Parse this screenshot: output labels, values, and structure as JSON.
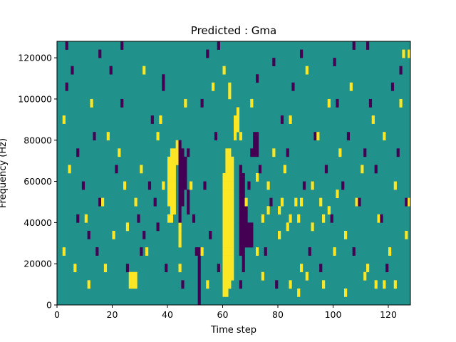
{
  "chart_data": {
    "type": "heatmap",
    "title": "Predicted : Gma",
    "xlabel": "Time step",
    "ylabel": "Frequency (Hz)",
    "xlim": [
      0,
      128
    ],
    "ylim": [
      0,
      128000
    ],
    "xticks": [
      0,
      20,
      40,
      60,
      80,
      100,
      120
    ],
    "yticks": [
      0,
      20000,
      40000,
      60000,
      80000,
      100000,
      120000
    ],
    "xtick_labels": [
      "0",
      "20",
      "40",
      "60",
      "80",
      "100",
      "120"
    ],
    "ytick_labels": [
      "0",
      "20000",
      "40000",
      "60000",
      "80000",
      "100000",
      "120000"
    ],
    "n_time_steps": 128,
    "n_freq_bins": 32,
    "freq_bin_width": 4000,
    "value_levels": [
      0,
      1,
      2
    ],
    "colors": {
      "low": "#440154",
      "mid": "#21918c",
      "high": "#fde725"
    },
    "background_level": 1,
    "high_cells": [
      [
        2,
        22
      ],
      [
        2,
        6
      ],
      [
        4,
        16
      ],
      [
        6,
        4
      ],
      [
        10,
        10
      ],
      [
        11,
        2
      ],
      [
        12,
        24
      ],
      [
        16,
        12
      ],
      [
        17,
        4
      ],
      [
        18,
        20
      ],
      [
        20,
        8
      ],
      [
        22,
        18
      ],
      [
        24,
        14
      ],
      [
        25,
        9
      ],
      [
        26,
        3
      ],
      [
        26,
        2
      ],
      [
        27,
        3
      ],
      [
        27,
        2
      ],
      [
        28,
        3
      ],
      [
        28,
        2
      ],
      [
        28,
        12
      ],
      [
        30,
        16
      ],
      [
        31,
        28
      ],
      [
        32,
        6
      ],
      [
        36,
        20
      ],
      [
        37,
        22
      ],
      [
        38,
        14
      ],
      [
        40,
        10
      ],
      [
        42,
        18
      ],
      [
        44,
        4
      ],
      [
        46,
        24
      ],
      [
        48,
        14
      ],
      [
        52,
        6
      ],
      [
        54,
        2
      ],
      [
        56,
        26
      ],
      [
        60,
        28
      ],
      [
        66,
        20
      ],
      [
        68,
        12
      ],
      [
        70,
        24
      ],
      [
        72,
        6
      ],
      [
        74,
        10
      ],
      [
        76,
        14
      ],
      [
        78,
        18
      ],
      [
        80,
        8
      ],
      [
        82,
        16
      ],
      [
        84,
        22
      ],
      [
        86,
        12
      ],
      [
        88,
        4
      ],
      [
        90,
        28
      ],
      [
        92,
        14
      ],
      [
        94,
        20
      ],
      [
        96,
        10
      ],
      [
        98,
        24
      ],
      [
        100,
        6
      ],
      [
        102,
        18
      ],
      [
        104,
        8
      ],
      [
        106,
        26
      ],
      [
        108,
        12
      ],
      [
        110,
        16
      ],
      [
        112,
        4
      ],
      [
        114,
        22
      ],
      [
        116,
        10
      ],
      [
        118,
        20
      ],
      [
        120,
        6
      ],
      [
        122,
        14
      ],
      [
        124,
        24
      ],
      [
        126,
        8
      ],
      [
        127,
        30
      ],
      [
        125,
        30
      ],
      [
        127,
        12
      ],
      [
        122,
        2
      ],
      [
        118,
        2
      ],
      [
        115,
        2
      ],
      [
        111,
        3
      ],
      [
        104,
        1
      ],
      [
        96,
        2
      ],
      [
        90,
        3
      ],
      [
        87,
        1
      ],
      [
        84,
        2
      ],
      [
        74,
        3
      ],
      [
        72,
        15
      ],
      [
        76,
        11
      ],
      [
        80,
        11
      ],
      [
        81,
        12
      ],
      [
        83,
        9
      ],
      [
        84,
        10
      ],
      [
        87,
        10
      ],
      [
        88,
        12
      ],
      [
        92,
        9
      ],
      [
        95,
        12
      ],
      [
        98,
        11
      ],
      [
        101,
        13
      ]
    ],
    "high_bands": [
      {
        "x": 40,
        "y_from": 12,
        "y_to": 17
      },
      {
        "x": 41,
        "y_from": 10,
        "y_to": 18
      },
      {
        "x": 42,
        "y_from": 11,
        "y_to": 18
      },
      {
        "x": 43,
        "y_from": 17,
        "y_to": 19
      },
      {
        "x": 60,
        "y_from": 1,
        "y_to": 15
      },
      {
        "x": 61,
        "y_from": 1,
        "y_to": 18
      },
      {
        "x": 62,
        "y_from": 2,
        "y_to": 18
      },
      {
        "x": 63,
        "y_from": 3,
        "y_to": 17
      },
      {
        "x": 64,
        "y_from": 20,
        "y_to": 22
      },
      {
        "x": 65,
        "y_from": 21,
        "y_to": 23
      },
      {
        "x": 44,
        "y_from": 7,
        "y_to": 9
      },
      {
        "x": 62,
        "y_from": 25,
        "y_to": 26
      }
    ],
    "low_cells": [
      [
        3,
        26
      ],
      [
        3,
        31
      ],
      [
        5,
        28
      ],
      [
        7,
        18
      ],
      [
        7,
        10
      ],
      [
        9,
        14
      ],
      [
        11,
        8
      ],
      [
        13,
        20
      ],
      [
        14,
        6
      ],
      [
        15,
        12
      ],
      [
        19,
        28
      ],
      [
        21,
        16
      ],
      [
        23,
        24
      ],
      [
        25,
        4
      ],
      [
        29,
        10
      ],
      [
        30,
        6
      ],
      [
        31,
        8
      ],
      [
        33,
        14
      ],
      [
        34,
        22
      ],
      [
        35,
        12
      ],
      [
        36,
        9
      ],
      [
        38,
        26
      ],
      [
        39,
        4
      ],
      [
        45,
        2
      ],
      [
        47,
        18
      ],
      [
        49,
        10
      ],
      [
        50,
        6
      ],
      [
        51,
        0
      ],
      [
        52,
        24
      ],
      [
        53,
        14
      ],
      [
        55,
        8
      ],
      [
        57,
        20
      ],
      [
        58,
        4
      ],
      [
        66,
        2
      ],
      [
        67,
        4
      ],
      [
        69,
        14
      ],
      [
        70,
        18
      ],
      [
        71,
        20
      ],
      [
        73,
        16
      ],
      [
        75,
        6
      ],
      [
        77,
        12
      ],
      [
        79,
        2
      ],
      [
        81,
        22
      ],
      [
        83,
        18
      ],
      [
        85,
        26
      ],
      [
        89,
        14
      ],
      [
        91,
        6
      ],
      [
        93,
        20
      ],
      [
        95,
        4
      ],
      [
        97,
        16
      ],
      [
        99,
        10
      ],
      [
        101,
        24
      ],
      [
        103,
        14
      ],
      [
        105,
        20
      ],
      [
        107,
        6
      ],
      [
        109,
        12
      ],
      [
        111,
        18
      ],
      [
        113,
        24
      ],
      [
        115,
        16
      ],
      [
        117,
        10
      ],
      [
        119,
        4
      ],
      [
        121,
        26
      ],
      [
        123,
        18
      ],
      [
        126,
        12
      ],
      [
        124,
        28
      ],
      [
        112,
        31
      ],
      [
        107,
        31
      ],
      [
        100,
        29
      ],
      [
        88,
        30
      ],
      [
        78,
        29
      ],
      [
        72,
        27
      ],
      [
        58,
        31
      ],
      [
        54,
        30
      ],
      [
        38,
        27
      ],
      [
        23,
        31
      ],
      [
        15,
        30
      ]
    ],
    "low_bands": [
      {
        "x": 44,
        "y_from": 10,
        "y_to": 19
      },
      {
        "x": 45,
        "y_from": 12,
        "y_to": 18
      },
      {
        "x": 46,
        "y_from": 14,
        "y_to": 17
      },
      {
        "x": 47,
        "y_from": 11,
        "y_to": 13
      },
      {
        "x": 51,
        "y_from": 1,
        "y_to": 6
      },
      {
        "x": 66,
        "y_from": 6,
        "y_to": 16
      },
      {
        "x": 67,
        "y_from": 4,
        "y_to": 15
      },
      {
        "x": 68,
        "y_from": 7,
        "y_to": 12
      },
      {
        "x": 69,
        "y_from": 7,
        "y_to": 9
      },
      {
        "x": 70,
        "y_from": 7,
        "y_to": 9
      },
      {
        "x": 71,
        "y_from": 18,
        "y_to": 20
      },
      {
        "x": 72,
        "y_from": 18,
        "y_to": 20
      }
    ]
  }
}
